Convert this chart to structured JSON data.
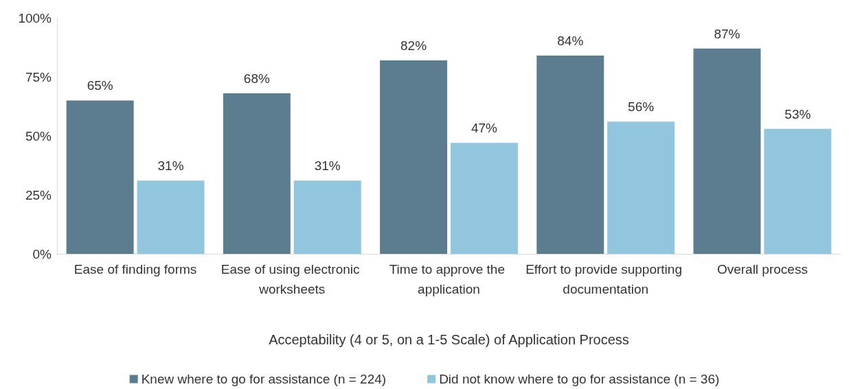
{
  "chart_data": {
    "type": "bar",
    "xlabel": "Acceptability (4 or 5, on a 1-5 Scale) of Application Process",
    "categories": [
      "Ease of finding forms",
      "Ease of using electronic worksheets",
      "Time to approve the application",
      "Effort to provide supporting documentation",
      "Overall process"
    ],
    "series": [
      {
        "name": "Knew where to go for assistance (n = 224)",
        "color": "#5b7d8f",
        "values": [
          65,
          68,
          82,
          84,
          87
        ],
        "value_labels": [
          "65%",
          "68%",
          "82%",
          "84%",
          "87%"
        ]
      },
      {
        "name": "Did not know where to go for assistance (n = 36)",
        "color": "#92c5de",
        "values": [
          31,
          31,
          47,
          56,
          53
        ],
        "value_labels": [
          "31%",
          "31%",
          "47%",
          "56%",
          "53%"
        ]
      }
    ],
    "ylim": [
      0,
      100
    ],
    "yticks": [
      {
        "value": 0,
        "label": "0%"
      },
      {
        "value": 25,
        "label": "25%"
      },
      {
        "value": 50,
        "label": "50%"
      },
      {
        "value": 75,
        "label": "75%"
      },
      {
        "value": 100,
        "label": "100%"
      }
    ],
    "grid": false,
    "legend": "bottom"
  }
}
